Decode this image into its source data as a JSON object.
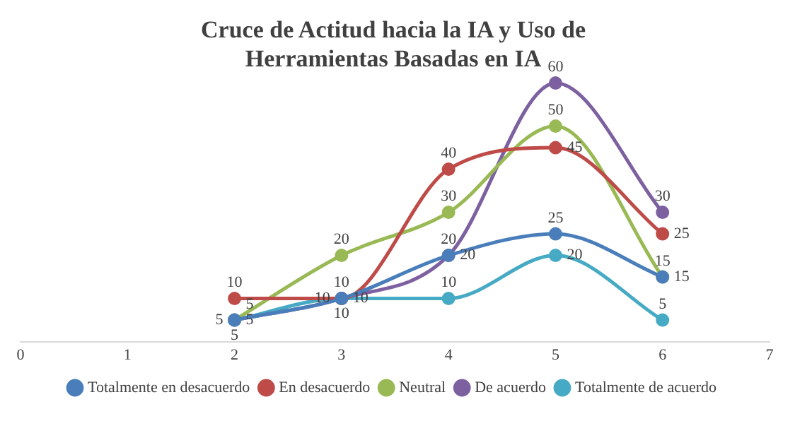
{
  "chart_data": {
    "type": "line",
    "title": "Cruce de Actitud hacia la IA y Uso de Herramientas Basadas en IA",
    "x": [
      2,
      3,
      4,
      5,
      6
    ],
    "xlim": [
      0,
      7
    ],
    "xticks": [
      0,
      1,
      2,
      3,
      4,
      5,
      6,
      7
    ],
    "tick_labels": "x",
    "grid": false,
    "legend": "bottom",
    "marker": "circle",
    "data_labels": true,
    "series": [
      {
        "name": "Totalmente en desacuerdo",
        "color": "#4a7ebb",
        "values": [
          5,
          10,
          20,
          25,
          15
        ]
      },
      {
        "name": "En desacuerdo",
        "color": "#be4b48",
        "values": [
          10,
          10,
          40,
          45,
          25
        ]
      },
      {
        "name": "Neutral",
        "color": "#98b954",
        "values": [
          5,
          20,
          30,
          50,
          15
        ]
      },
      {
        "name": "De acuerdo",
        "color": "#7d60a0",
        "values": [
          5,
          10,
          20,
          60,
          30
        ]
      },
      {
        "name": "Totalmente de acuerdo",
        "color": "#46aac5",
        "values": [
          5,
          10,
          10,
          20,
          5
        ]
      }
    ]
  }
}
